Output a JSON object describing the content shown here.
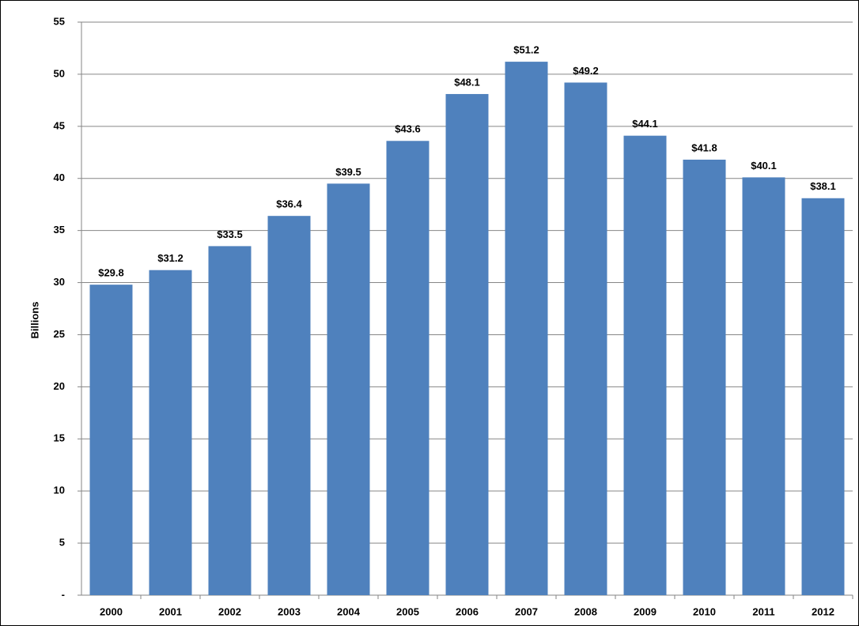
{
  "chart_data": {
    "type": "bar",
    "y_label": "Billions",
    "categories": [
      "2000",
      "2001",
      "2002",
      "2003",
      "2004",
      "2005",
      "2006",
      "2007",
      "2008",
      "2009",
      "2010",
      "2011",
      "2012"
    ],
    "values": [
      29.8,
      31.2,
      33.5,
      36.4,
      39.5,
      43.6,
      48.1,
      51.2,
      49.2,
      44.1,
      41.8,
      40.1,
      38.1
    ],
    "value_labels": [
      "$29.8",
      "$31.2",
      "$33.5",
      "$36.4",
      "$39.5",
      "$43.6",
      "$48.1",
      "$51.2",
      "$49.2",
      "$44.1",
      "$41.8",
      "$40.1",
      "$38.1"
    ],
    "color": "#4f81bd",
    "ylim": [
      0,
      55
    ],
    "yticks": [
      {
        "value": 0,
        "label": "-"
      },
      5,
      10,
      15,
      20,
      25,
      30,
      35,
      40,
      45,
      50,
      55
    ],
    "grid": true
  }
}
